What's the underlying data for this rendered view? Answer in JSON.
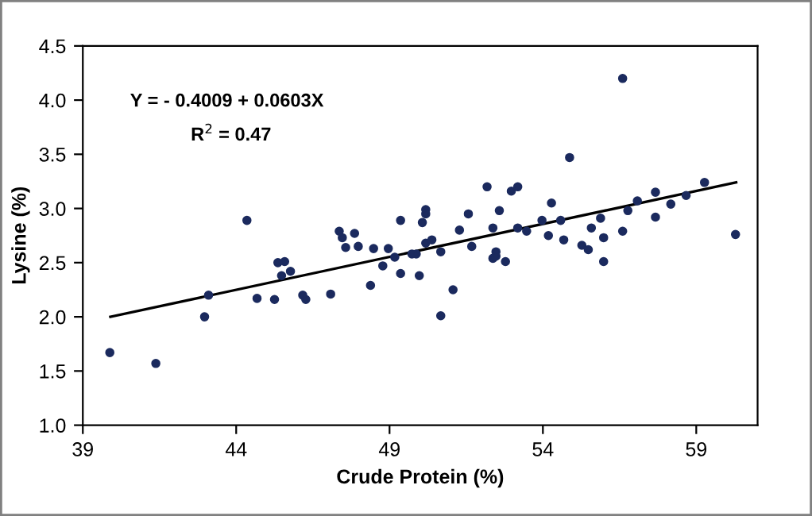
{
  "chart_data": {
    "type": "scatter",
    "xlabel": "Crude Protein (%)",
    "ylabel": "Lysine (%)",
    "xlim": [
      39,
      61
    ],
    "xticks": [
      39,
      44,
      49,
      54,
      59
    ],
    "ylim": [
      1.0,
      4.5
    ],
    "yticks": [
      {
        "value": 1.0,
        "label": "1.0"
      },
      {
        "value": 1.5,
        "label": "1.5"
      },
      {
        "value": 2.0,
        "label": "2.0"
      },
      {
        "value": 2.5,
        "label": "2.5"
      },
      {
        "value": 3.0,
        "label": "3.0"
      },
      {
        "value": 3.5,
        "label": "3.5"
      },
      {
        "value": 4.0,
        "label": "4.0"
      },
      {
        "value": 4.5,
        "label": "4.5"
      }
    ],
    "grid": false,
    "legend": false,
    "marker": "circle",
    "annotations": [
      "Y = - 0.4009 + 0.0603X",
      "R$^{2}$ = 0.47"
    ],
    "series": [
      {
        "color": "#1b2a5e",
        "x": [
          39.88,
          41.38,
          42.97,
          43.1,
          44.35,
          44.68,
          45.25,
          45.36,
          45.48,
          45.58,
          45.77,
          46.17,
          46.27,
          47.08,
          47.36,
          47.46,
          47.57,
          47.86,
          47.98,
          48.38,
          48.48,
          48.78,
          48.96,
          49.17,
          49.36,
          49.36,
          49.73,
          49.87,
          49.97,
          50.07,
          50.18,
          50.18,
          50.18,
          50.38,
          50.67,
          50.67,
          51.07,
          51.28,
          51.57,
          51.68,
          52.18,
          52.37,
          52.37,
          52.47,
          52.47,
          52.58,
          52.78,
          52.97,
          53.18,
          53.18,
          53.47,
          53.97,
          54.18,
          54.28,
          54.58,
          54.68,
          54.87,
          55.27,
          55.48,
          55.58,
          55.88,
          55.98,
          55.98,
          56.6,
          56.6,
          56.77,
          57.08,
          57.67,
          57.67,
          58.17,
          58.67,
          59.27,
          60.28
        ],
        "values": [
          1.67,
          1.57,
          2.0,
          2.2,
          2.89,
          2.17,
          2.16,
          2.5,
          2.38,
          2.51,
          2.42,
          2.2,
          2.16,
          2.21,
          2.79,
          2.73,
          2.64,
          2.77,
          2.65,
          2.29,
          2.63,
          2.47,
          2.63,
          2.55,
          2.89,
          2.4,
          2.58,
          2.58,
          2.38,
          2.87,
          2.99,
          2.95,
          2.68,
          2.71,
          2.6,
          2.01,
          2.25,
          2.8,
          2.95,
          2.65,
          3.2,
          2.82,
          2.54,
          2.6,
          2.56,
          2.98,
          2.51,
          3.16,
          3.2,
          2.82,
          2.79,
          2.89,
          2.75,
          3.05,
          2.89,
          2.71,
          3.47,
          2.66,
          2.62,
          2.82,
          2.91,
          2.73,
          2.51,
          4.2,
          2.79,
          2.98,
          3.07,
          3.15,
          2.92,
          3.04,
          3.12,
          3.24,
          2.76
        ]
      },
      {
        "type": "line",
        "color": "#000000",
        "x": [
          39.9,
          60.3
        ],
        "values": [
          2.0,
          3.24
        ],
        "marker": "none",
        "line_style": "solid"
      }
    ]
  }
}
